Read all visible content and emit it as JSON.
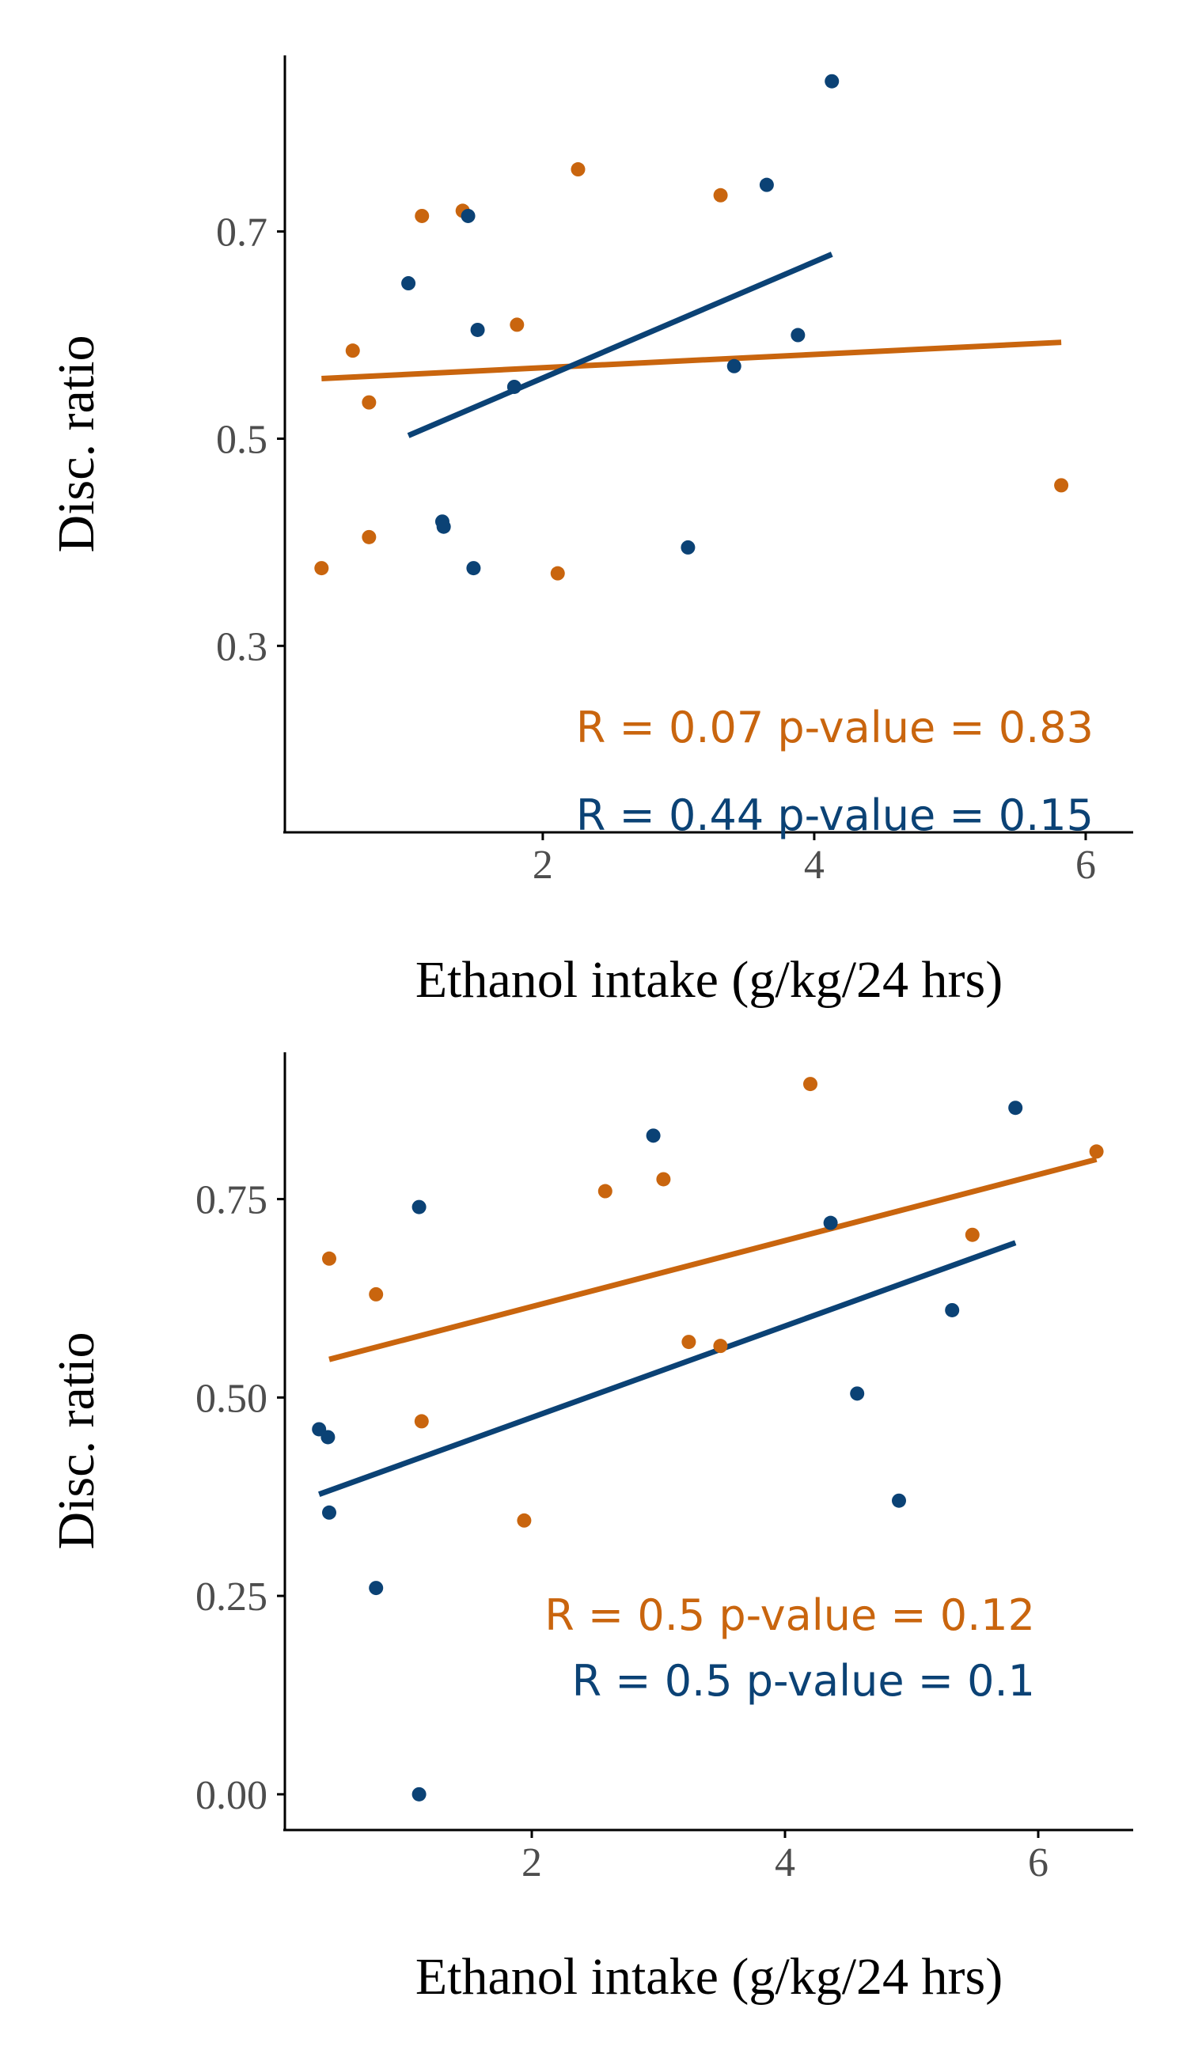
{
  "colors": {
    "orange": "#c9650e",
    "blue": "#0b4275",
    "tick": "#4d4d4d",
    "axis": "#000000"
  },
  "chart_data": [
    {
      "type": "scatter",
      "xlabel": "Ethanol intake (g/kg/24 hrs)",
      "ylabel": "Disc. ratio",
      "x_ticks": [
        2,
        4,
        6
      ],
      "x_tick_labels": [
        "2",
        "4",
        "6"
      ],
      "y_ticks": [
        0.3,
        0.5,
        0.7
      ],
      "y_tick_labels": [
        "0.3",
        "0.5",
        "0.7"
      ],
      "xlim": [
        0.1,
        6.35
      ],
      "ylim": [
        0.12,
        0.87
      ],
      "grid": false,
      "series": [
        {
          "color": "orange",
          "points": [
            [
              0.37,
              0.375
            ],
            [
              0.6,
              0.585
            ],
            [
              0.72,
              0.535
            ],
            [
              0.72,
              0.405
            ],
            [
              1.11,
              0.715
            ],
            [
              1.41,
              0.72
            ],
            [
              1.81,
              0.61
            ],
            [
              2.11,
              0.37
            ],
            [
              2.26,
              0.76
            ],
            [
              3.31,
              0.735
            ],
            [
              5.82,
              0.455
            ]
          ],
          "fit": [
            [
              0.37,
              0.558
            ],
            [
              5.82,
              0.593
            ]
          ],
          "annotation": "R = 0.07 p-value = 0.83"
        },
        {
          "color": "blue",
          "points": [
            [
              1.01,
              0.65
            ],
            [
              1.26,
              0.42
            ],
            [
              1.27,
              0.415
            ],
            [
              1.45,
              0.715
            ],
            [
              1.49,
              0.375
            ],
            [
              1.52,
              0.605
            ],
            [
              1.79,
              0.55
            ],
            [
              3.07,
              0.395
            ],
            [
              3.41,
              0.57
            ],
            [
              3.65,
              0.745
            ],
            [
              3.88,
              0.6
            ],
            [
              4.13,
              0.845
            ]
          ],
          "fit": [
            [
              1.01,
              0.503
            ],
            [
              4.13,
              0.678
            ]
          ],
          "annotation": "R = 0.44 p-value = 0.15"
        }
      ]
    },
    {
      "type": "scatter",
      "xlabel": "Ethanol intake (g/kg/24 hrs)",
      "ylabel": "Disc. ratio",
      "x_ticks": [
        2,
        4,
        6
      ],
      "x_tick_labels": [
        "2",
        "4",
        "6"
      ],
      "y_ticks": [
        0,
        0.25,
        0.5,
        0.75
      ],
      "y_tick_labels": [
        "0.00",
        "0.25",
        "0.50",
        "0.75"
      ],
      "xlim": [
        0.05,
        6.75
      ],
      "ylim": [
        -0.045,
        0.935
      ],
      "grid": false,
      "series": [
        {
          "color": "orange",
          "points": [
            [
              0.4,
              0.675
            ],
            [
              0.77,
              0.63
            ],
            [
              1.13,
              0.47
            ],
            [
              1.94,
              0.345
            ],
            [
              2.58,
              0.76
            ],
            [
              3.04,
              0.775
            ],
            [
              3.24,
              0.57
            ],
            [
              3.49,
              0.565
            ],
            [
              4.2,
              0.895
            ],
            [
              5.48,
              0.705
            ],
            [
              6.46,
              0.81
            ]
          ],
          "fit": [
            [
              0.4,
              0.548
            ],
            [
              6.46,
              0.8
            ]
          ],
          "annotation": "R = 0.5 p-value = 0.12"
        },
        {
          "color": "blue",
          "points": [
            [
              0.32,
              0.46
            ],
            [
              0.39,
              0.45
            ],
            [
              0.4,
              0.355
            ],
            [
              0.77,
              0.26
            ],
            [
              1.11,
              0.0
            ],
            [
              1.11,
              0.74
            ],
            [
              2.96,
              0.83
            ],
            [
              4.36,
              0.72
            ],
            [
              4.57,
              0.505
            ],
            [
              4.9,
              0.37
            ],
            [
              5.32,
              0.61
            ],
            [
              5.82,
              0.865
            ]
          ],
          "fit": [
            [
              0.32,
              0.378
            ],
            [
              5.82,
              0.695
            ]
          ],
          "annotation": "R = 0.5 p-value = 0.1"
        }
      ]
    }
  ]
}
